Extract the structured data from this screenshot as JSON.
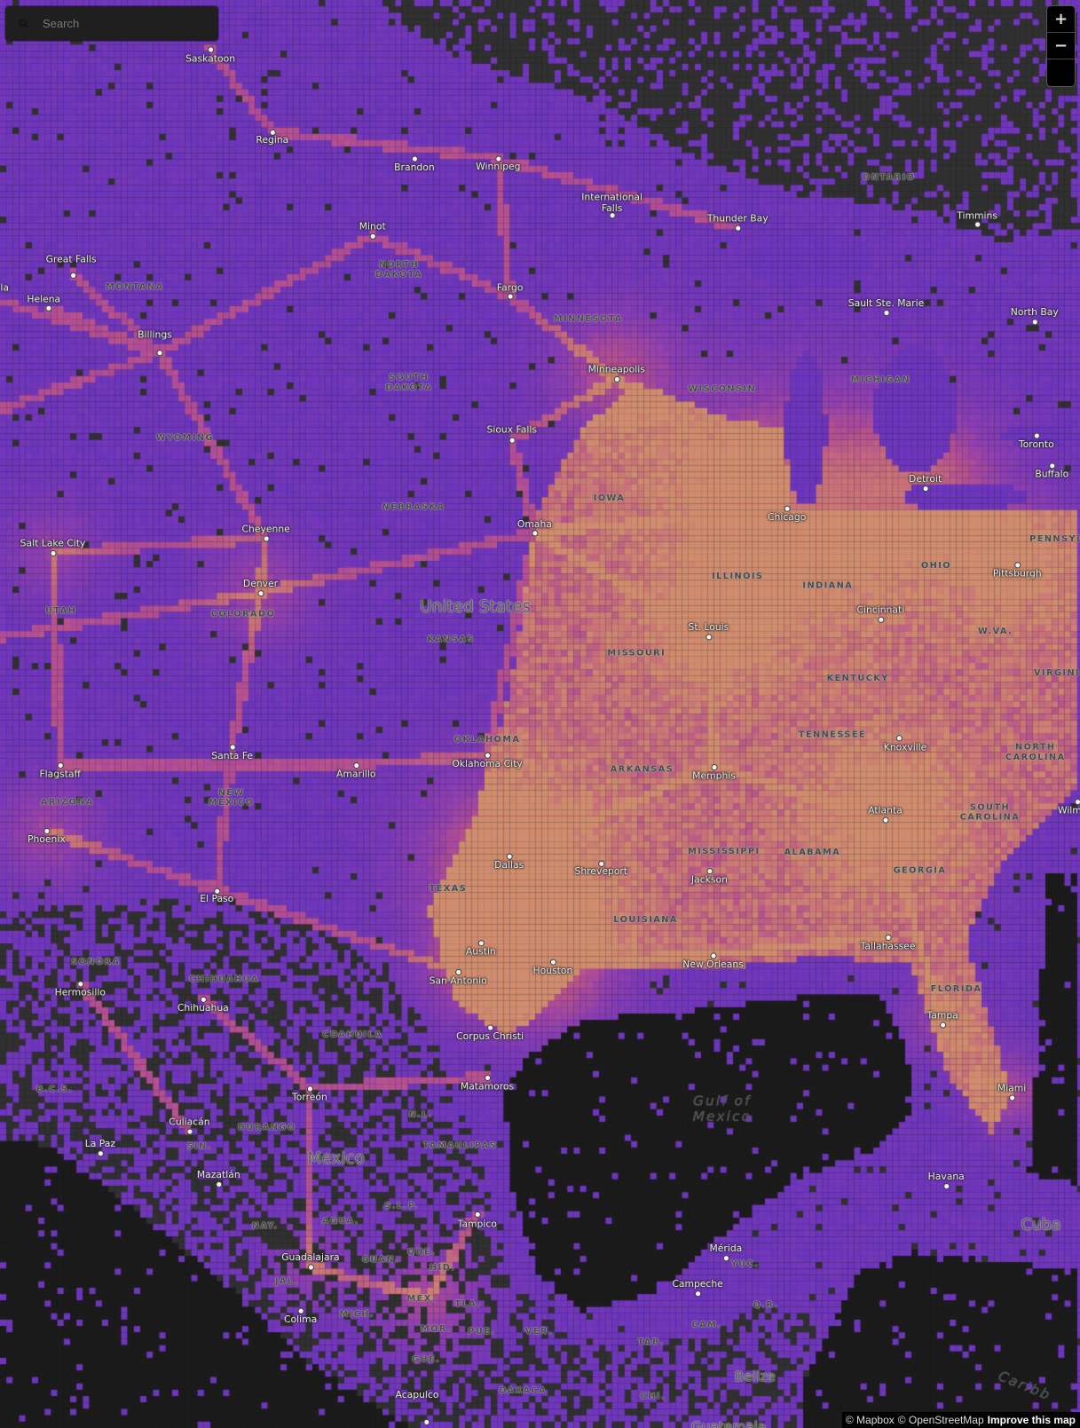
{
  "search": {
    "placeholder": "Search",
    "icon": "search-icon"
  },
  "zoom_controls": {
    "zoom_in": "+",
    "zoom_out": "−",
    "compass": ""
  },
  "attribution": {
    "mapbox": "© Mapbox",
    "osm": "© OpenStreetMap",
    "improve": "Improve this map"
  },
  "colors": {
    "low": "#6b35bc",
    "mid": "#b44f92",
    "high": "#d08c6e",
    "land": "#303030",
    "water": "#1b1b1b"
  },
  "map": {
    "cities": [
      "Saskatoon",
      "Regina",
      "Brandon",
      "Winnipeg",
      "International\nFalls",
      "Thunder Bay",
      "Timmins",
      "Minot",
      "Great Falls",
      "Helena",
      "Billings",
      "Fargo",
      "Sault Ste. Marie",
      "North Bay",
      "Minneapolis",
      "Sioux Falls",
      "Toronto",
      "Buffalo",
      "Detroit",
      "Chicago",
      "Omaha",
      "Cheyenne",
      "Salt Lake City",
      "Denver",
      "Pittsburgh",
      "Cincinnati",
      "St. Louis",
      "Knoxville",
      "Santa Fe",
      "Oklahoma City",
      "Amarillo",
      "Memphis",
      "Flagstaff",
      "Atlanta",
      "Phoenix",
      "Dallas",
      "Shreveport",
      "Jackson",
      "El Paso",
      "Austin",
      "New Orleans",
      "Tallahassee",
      "Houston",
      "San Antonio",
      "Hermosillo",
      "Chihuahua",
      "Tampa",
      "Corpus Christi",
      "Miami",
      "Matamoros",
      "Torreón",
      "Culiacán",
      "La Paz",
      "Mazatlán",
      "Havana",
      "Tampico",
      "Mérida",
      "Guadalajara",
      "Campeche",
      "Colima",
      "Acapulco",
      "la",
      "Wilmi"
    ],
    "regions": [
      "ONTARIO",
      "MONTANA",
      "NORTH\nDAKOTA",
      "MINNESOTA",
      "SOUTH\nDAKOTA",
      "WISCONSIN",
      "MICHIGAN",
      "WYOMING",
      "IOWA",
      "NEBRASKA",
      "ILLINOIS",
      "INDIANA",
      "OHIO",
      "PENNSYL",
      "UTAH",
      "COLORADO",
      "KANSAS",
      "MISSOURI",
      "W.VA.",
      "KENTUCKY",
      "VIRGINIA",
      "TENNESSEE",
      "NORTH\nCAROLINA",
      "OKLAHOMA",
      "ARKANSAS",
      "NEW\nMEXICO",
      "ARIZONA",
      "SOUTH\nCAROLINA",
      "MISSISSIPPI",
      "ALABAMA",
      "GEORGIA",
      "TEXAS",
      "LOUISIANA",
      "FLORIDA",
      "SONORA",
      "CHIHUAHUA",
      "COAHUILA",
      "B.C.S.",
      "N.L.",
      "DURANGO",
      "TAMAULIPAS",
      "SIN.",
      "S.L.P.",
      "NAY.",
      "AGUA.",
      "QUE.",
      "GUAN.",
      "YUC.",
      "HID.",
      "JAL.",
      "CAM.",
      "Q.R.",
      "MÉX.",
      "TLA.",
      "MICH.",
      "MOR.",
      "PUE.",
      "VER.",
      "TAB.",
      "GUE.",
      "OAXACA",
      "CHI."
    ],
    "countries": [
      "United States",
      "Mexico",
      "Cuba",
      "Belize",
      "Guatemala"
    ],
    "water": [
      "Gulf of\nMexico",
      "Caribb"
    ]
  }
}
